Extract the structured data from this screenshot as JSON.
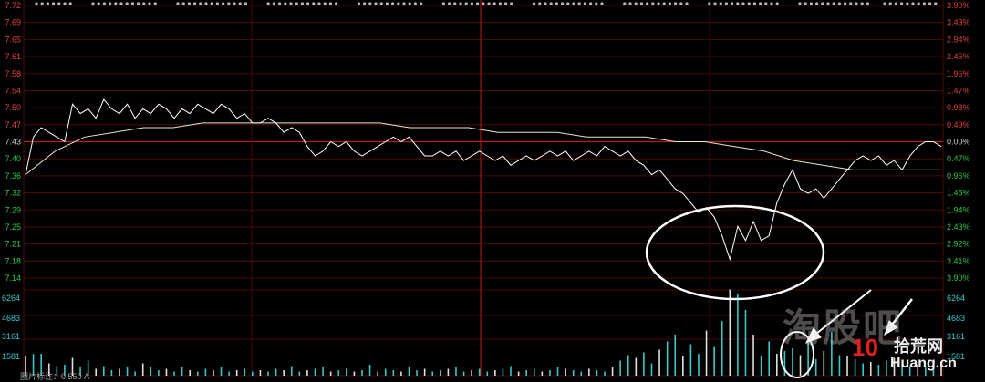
{
  "chart_data": {
    "type": "line",
    "price_axis_labels": [
      "7.72",
      "7.69",
      "7.65",
      "7.61",
      "7.58",
      "7.54",
      "7.50",
      "7.47",
      "7.43",
      "7.40",
      "7.36",
      "7.32",
      "7.29",
      "7.25",
      "7.21",
      "7.18",
      "7.14"
    ],
    "percent_axis_labels": [
      "3.90%",
      "3.43%",
      "2.94%",
      "2.45%",
      "1.96%",
      "1.47%",
      "0.98%",
      "0.49%",
      "0.00%",
      "0.47%",
      "0.96%",
      "1.45%",
      "1.94%",
      "2.43%",
      "2.92%",
      "3.41%",
      "3.90%"
    ],
    "volume_axis_left": [
      "6264",
      "4683",
      "3161",
      "1581"
    ],
    "volume_axis_right": [
      "6264",
      "4683",
      "3161",
      "1581"
    ],
    "prev_close": 7.43,
    "ylim": [
      7.14,
      7.72
    ],
    "volume_max": 6264,
    "price": [
      7.36,
      7.44,
      7.46,
      7.45,
      7.44,
      7.43,
      7.51,
      7.49,
      7.5,
      7.48,
      7.52,
      7.5,
      7.49,
      7.51,
      7.48,
      7.5,
      7.49,
      7.51,
      7.5,
      7.48,
      7.5,
      7.49,
      7.51,
      7.5,
      7.49,
      7.51,
      7.5,
      7.48,
      7.49,
      7.47,
      7.47,
      7.48,
      7.47,
      7.45,
      7.46,
      7.45,
      7.42,
      7.4,
      7.41,
      7.43,
      7.42,
      7.43,
      7.41,
      7.4,
      7.41,
      7.42,
      7.43,
      7.44,
      7.43,
      7.44,
      7.42,
      7.4,
      7.4,
      7.41,
      7.4,
      7.41,
      7.39,
      7.4,
      7.41,
      7.4,
      7.39,
      7.4,
      7.38,
      7.39,
      7.4,
      7.39,
      7.4,
      7.41,
      7.4,
      7.41,
      7.39,
      7.4,
      7.41,
      7.4,
      7.42,
      7.41,
      7.4,
      7.41,
      7.39,
      7.38,
      7.36,
      7.37,
      7.35,
      7.33,
      7.32,
      7.3,
      7.28,
      7.29,
      7.27,
      7.23,
      7.18,
      7.25,
      7.22,
      7.26,
      7.22,
      7.23,
      7.3,
      7.34,
      7.37,
      7.33,
      7.32,
      7.33,
      7.31,
      7.33,
      7.35,
      7.37,
      7.39,
      7.4,
      7.39,
      7.4,
      7.38,
      7.39,
      7.37,
      7.4,
      7.42,
      7.43,
      7.43,
      7.42
    ],
    "avg_price": [
      7.36,
      7.41,
      7.44,
      7.45,
      7.46,
      7.46,
      7.47,
      7.47,
      7.47,
      7.47,
      7.47,
      7.47,
      7.47,
      7.46,
      7.46,
      7.46,
      7.45,
      7.45,
      7.45,
      7.44,
      7.44,
      7.44,
      7.43,
      7.43,
      7.42,
      7.41,
      7.39,
      7.38,
      7.37,
      7.37,
      7.37,
      7.37
    ],
    "volume": [
      1450,
      1580,
      1600,
      900,
      700,
      800,
      1300,
      600,
      1100,
      500,
      700,
      400,
      500,
      600,
      300,
      900,
      600,
      400,
      500,
      300,
      600,
      400,
      300,
      500,
      400,
      600,
      300,
      400,
      500,
      300,
      400,
      300,
      500,
      400,
      700,
      300,
      400,
      500,
      600,
      300,
      400,
      500,
      300,
      400,
      800,
      300,
      500,
      400,
      300,
      600,
      400,
      500,
      300,
      400,
      500,
      600,
      300,
      400,
      500,
      300,
      400,
      500,
      700,
      300,
      400,
      500,
      300,
      400,
      600,
      500,
      400,
      300,
      500,
      400,
      300,
      600,
      1100,
      1500,
      1300,
      1700,
      900,
      1900,
      2500,
      3000,
      1400,
      2300,
      1600,
      3300,
      2100,
      4000,
      6300,
      6000,
      4800,
      3000,
      1400,
      2500,
      1600,
      1800,
      2000,
      1500,
      2400,
      1200,
      1800,
      3200,
      1500,
      1400,
      1200,
      900,
      1000,
      800,
      1100,
      1300,
      900,
      700,
      800,
      600,
      900,
      800
    ]
  },
  "watermark": "淘股吧",
  "logo": {
    "number": "10",
    "text": "拾荒网",
    "domain": "Huang.cn"
  },
  "footer": "图片标注：0.550 A"
}
